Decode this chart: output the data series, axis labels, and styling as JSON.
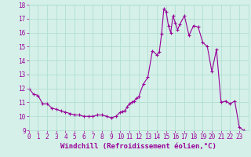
{
  "x": [
    0,
    0.5,
    1,
    1.5,
    2,
    2.5,
    3,
    3.5,
    4,
    4.5,
    5,
    5.5,
    6,
    6.5,
    7,
    7.5,
    8,
    8.5,
    9,
    9.5,
    10,
    10.25,
    10.5,
    10.75,
    11,
    11.25,
    11.5,
    11.75,
    12,
    12.5,
    13,
    13.5,
    14,
    14.25,
    14.5,
    14.75,
    15,
    15.25,
    15.5,
    15.75,
    16,
    16.25,
    16.5,
    17,
    17.5,
    18,
    18.5,
    19,
    19.5,
    20,
    20.5,
    21,
    21.5,
    22,
    22.5,
    23,
    23.5
  ],
  "y": [
    12.0,
    11.6,
    11.5,
    10.9,
    10.9,
    10.6,
    10.5,
    10.4,
    10.3,
    10.2,
    10.1,
    10.1,
    10.0,
    10.0,
    10.0,
    10.1,
    10.1,
    10.0,
    9.9,
    10.0,
    10.3,
    10.35,
    10.4,
    10.7,
    10.9,
    11.0,
    11.1,
    11.3,
    11.4,
    12.3,
    12.8,
    14.7,
    14.4,
    14.6,
    15.9,
    17.7,
    17.5,
    16.5,
    16.0,
    17.2,
    16.7,
    16.2,
    16.6,
    17.2,
    15.8,
    16.5,
    16.4,
    15.3,
    15.0,
    13.2,
    14.8,
    11.0,
    11.1,
    10.9,
    11.1,
    9.2,
    9.0
  ],
  "line_color": "#990099",
  "marker": "+",
  "markersize": 3,
  "linewidth": 0.8,
  "xlabel": "Windchill (Refroidissement éolien,°C)",
  "xlabel_fontsize": 6.5,
  "xlim": [
    0,
    24
  ],
  "ylim": [
    9,
    18
  ],
  "yticks": [
    9,
    10,
    11,
    12,
    13,
    14,
    15,
    16,
    17,
    18
  ],
  "xticks": [
    0,
    1,
    2,
    3,
    4,
    5,
    6,
    7,
    8,
    9,
    10,
    11,
    12,
    13,
    14,
    15,
    16,
    17,
    18,
    19,
    20,
    21,
    22,
    23
  ],
  "grid_color": "#aaddcc",
  "bg_color": "#d4f0e8",
  "tick_fontsize": 5.5,
  "label_color": "#990099"
}
